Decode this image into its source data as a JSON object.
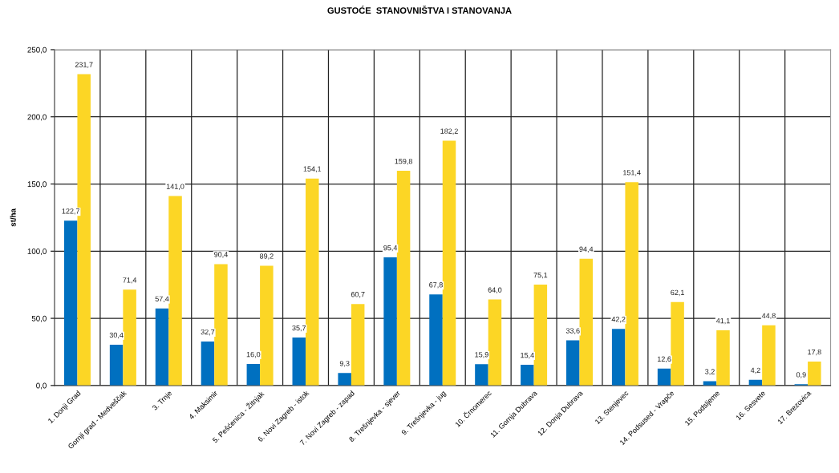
{
  "chart_data": {
    "type": "bar",
    "title": "GUSTOĆE  STANOVNIŠTVA I STANOVANJA",
    "ylabel": "st/ha",
    "categories": [
      "1. Donji Grad",
      "Gornji grad - Medveščak",
      "3. Trnje",
      "4. Maksimir",
      "5. Pešćenica - Žitnjak",
      "6. Novi Zagreb - istok",
      "7. Novi Zagreb - zapad",
      "8. Trešnjevka - sjever",
      "9. Trešnjevka - jug",
      "10. Črnomerec",
      "11. Gornja Dubrava",
      "12. Donja Dubrava",
      "13. Stenjevec",
      "14. Podsused - Vrapče",
      "15. Podsljeme",
      "16. Sesvete",
      "17. Brezovica"
    ],
    "series": [
      {
        "color": "#0070c0",
        "values": [
          122.7,
          30.4,
          57.4,
          32.7,
          16.0,
          35.7,
          9.3,
          95.4,
          67.8,
          15.9,
          15.4,
          33.6,
          42.2,
          12.6,
          3.2,
          4.2,
          0.9
        ],
        "value_labels": [
          "122,7",
          "30,4",
          "57,4",
          "32,7",
          "16,0",
          "35,7",
          "9,3",
          "95,4",
          "67,8",
          "15,9",
          "15,4",
          "33,6",
          "42,2",
          "12,6",
          "3,2",
          "4,2",
          "0,9"
        ]
      },
      {
        "color": "#fcd625",
        "values": [
          231.7,
          71.4,
          141.0,
          90.4,
          89.2,
          154.1,
          60.7,
          159.8,
          182.2,
          64.0,
          75.1,
          94.4,
          151.4,
          62.1,
          41.1,
          44.8,
          17.8
        ],
        "value_labels": [
          "231,7",
          "71,4",
          "141,0",
          "90,4",
          "89,2",
          "154,1",
          "60,7",
          "159,8",
          "182,2",
          "64,0",
          "75,1",
          "94,4",
          "151,4",
          "62,1",
          "41,1",
          "44,8",
          "17,8"
        ]
      }
    ],
    "ylim": [
      0,
      250
    ],
    "yticks": [
      {
        "value": 0,
        "label": "0,0"
      },
      {
        "value": 50,
        "label": "50,0"
      },
      {
        "value": 100,
        "label": "100,0"
      },
      {
        "value": 150,
        "label": "150,0"
      },
      {
        "value": 200,
        "label": "200,0"
      },
      {
        "value": 250,
        "label": "250,0"
      }
    ],
    "grid": true
  }
}
